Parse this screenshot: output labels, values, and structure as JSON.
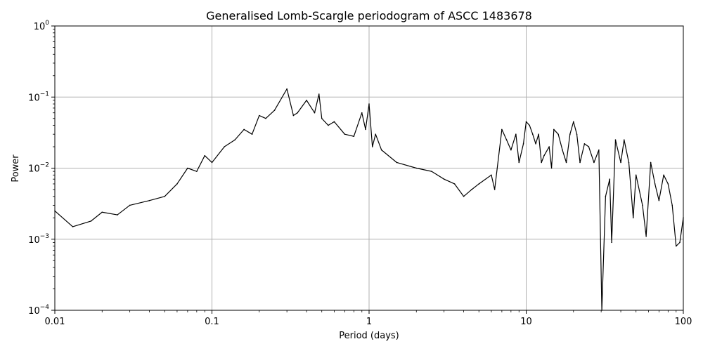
{
  "chart_data": {
    "type": "line",
    "title": "Generalised Lomb-Scargle periodogram of ASCC 1483678",
    "xlabel": "Period (days)",
    "ylabel": "Power",
    "xscale": "log",
    "yscale": "log",
    "xlim": [
      0.01,
      100
    ],
    "ylim": [
      0.0001,
      1
    ],
    "grid": true,
    "x_ticks": [
      {
        "value": 0.01,
        "label": "0.01"
      },
      {
        "value": 0.1,
        "label": "0.1"
      },
      {
        "value": 1,
        "label": "1"
      },
      {
        "value": 10,
        "label": "10"
      },
      {
        "value": 100,
        "label": "100"
      }
    ],
    "y_ticks": [
      {
        "value": 0.0001,
        "base": "10",
        "exp": "−4"
      },
      {
        "value": 0.001,
        "base": "10",
        "exp": "−3"
      },
      {
        "value": 0.01,
        "base": "10",
        "exp": "−2"
      },
      {
        "value": 0.1,
        "base": "10",
        "exp": "−1"
      },
      {
        "value": 1,
        "base": "10",
        "exp": "0"
      }
    ],
    "line_color": "#000000",
    "grid_color": "#b0b0b0",
    "series": [
      {
        "x": [
          0.01,
          0.013,
          0.017,
          0.02,
          0.025,
          0.03,
          0.04,
          0.05,
          0.06,
          0.07,
          0.08,
          0.09,
          0.1,
          0.12,
          0.14,
          0.16,
          0.18,
          0.2,
          0.22,
          0.25,
          0.3,
          0.33,
          0.35,
          0.4,
          0.45,
          0.48,
          0.5,
          0.55,
          0.6,
          0.7,
          0.8,
          0.9,
          0.95,
          1.0,
          1.05,
          1.1,
          1.2,
          1.5,
          2.0,
          2.5,
          3.0,
          3.5,
          4.0,
          4.5,
          5.0,
          6.0,
          6.3,
          7.0,
          7.5,
          8.0,
          8.6,
          9.0,
          9.6,
          10.0,
          10.5,
          11.0,
          11.5,
          12.0,
          12.5,
          13.0,
          14.0,
          14.5,
          15.0,
          16.0,
          17.0,
          18.0,
          19.0,
          20.0,
          21.0,
          22.0,
          23.5,
          25.0,
          27.0,
          29.0,
          30.3,
          32.0,
          34.0,
          35.0,
          37.0,
          40.0,
          42.0,
          45.0,
          48.0,
          50.0,
          55.0,
          58.0,
          62.0,
          66.0,
          70.0,
          75.0,
          80.0,
          85.0,
          90.0,
          95.0,
          100.0
        ],
        "y": [
          0.0025,
          0.0015,
          0.0018,
          0.0024,
          0.0022,
          0.003,
          0.0035,
          0.004,
          0.006,
          0.01,
          0.009,
          0.015,
          0.012,
          0.02,
          0.025,
          0.035,
          0.03,
          0.055,
          0.05,
          0.065,
          0.13,
          0.055,
          0.06,
          0.09,
          0.06,
          0.11,
          0.05,
          0.04,
          0.045,
          0.03,
          0.028,
          0.06,
          0.035,
          0.08,
          0.02,
          0.03,
          0.018,
          0.012,
          0.01,
          0.009,
          0.007,
          0.006,
          0.004,
          0.005,
          0.006,
          0.008,
          0.005,
          0.035,
          0.025,
          0.018,
          0.03,
          0.012,
          0.022,
          0.045,
          0.04,
          0.03,
          0.022,
          0.03,
          0.012,
          0.015,
          0.02,
          0.01,
          0.035,
          0.03,
          0.018,
          0.012,
          0.03,
          0.045,
          0.03,
          0.012,
          0.022,
          0.02,
          0.012,
          0.018,
          0.0001,
          0.004,
          0.007,
          0.0009,
          0.025,
          0.012,
          0.025,
          0.012,
          0.002,
          0.008,
          0.003,
          0.0011,
          0.012,
          0.006,
          0.0035,
          0.008,
          0.006,
          0.003,
          0.0008,
          0.0009,
          0.002
        ]
      }
    ]
  }
}
